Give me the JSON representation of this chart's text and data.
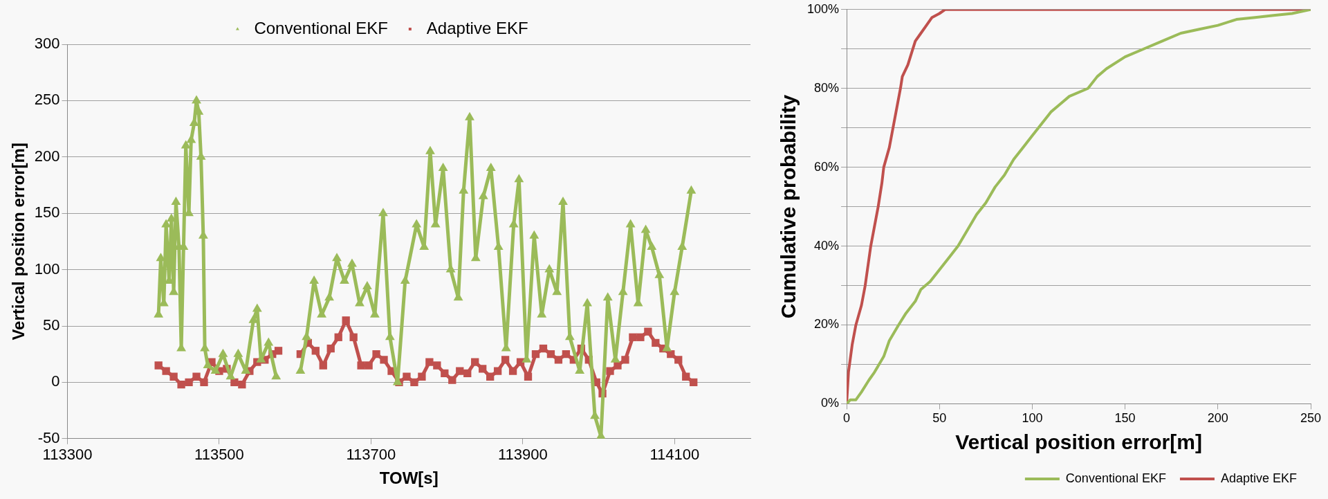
{
  "chart_data": [
    {
      "type": "line",
      "xlabel": "TOW[s]",
      "ylabel": "Vertical position error[m]",
      "xlim": [
        113300,
        114200
      ],
      "xticks": [
        113300,
        113500,
        113700,
        113900,
        114100
      ],
      "ylim": [
        -50,
        300
      ],
      "yticks": [
        -50,
        0,
        50,
        100,
        150,
        200,
        250,
        300
      ],
      "grid": "y",
      "legend": "top",
      "line_style": "solid",
      "series": [
        {
          "name": "Conventional EKF",
          "color": "#9bbb59",
          "marker": "triangle",
          "x": [
            113420,
            113423,
            113427,
            113430,
            113434,
            113437,
            113440,
            113443,
            113447,
            113450,
            113453,
            113456,
            113460,
            113463,
            113467,
            113470,
            113473,
            113476,
            113479,
            113481,
            113485,
            113495,
            113505,
            113515,
            113525,
            113535,
            113545,
            113550,
            113555,
            113565,
            113575,
            113590,
            113607,
            113615,
            113625,
            113635,
            113645,
            113655,
            113665,
            113675,
            113685,
            113695,
            113705,
            113716,
            113725,
            113735,
            113745,
            113760,
            113770,
            113778,
            113785,
            113795,
            113805,
            113815,
            113822,
            113830,
            113838,
            113848,
            113858,
            113868,
            113878,
            113888,
            113895,
            113905,
            113915,
            113925,
            113935,
            113945,
            113953,
            113962,
            113975,
            113985,
            113995,
            114003,
            114012,
            114022,
            114032,
            114042,
            114052,
            114062,
            114070,
            114080,
            114090,
            114100,
            114110,
            114122
          ],
          "values": [
            60,
            110,
            70,
            140,
            90,
            145,
            80,
            160,
            120,
            30,
            120,
            210,
            150,
            215,
            230,
            250,
            240,
            200,
            130,
            30,
            15,
            10,
            25,
            5,
            25,
            10,
            55,
            65,
            20,
            35,
            5,
            null,
            10,
            40,
            90,
            60,
            75,
            110,
            90,
            105,
            70,
            85,
            60,
            150,
            40,
            0,
            90,
            140,
            120,
            205,
            140,
            190,
            100,
            75,
            170,
            235,
            110,
            165,
            190,
            120,
            30,
            140,
            180,
            20,
            130,
            60,
            100,
            80,
            160,
            40,
            10,
            70,
            -30,
            -48,
            75,
            20,
            80,
            140,
            70,
            135,
            120,
            95,
            30,
            80,
            120,
            170
          ]
        },
        {
          "name": "Adaptive EKF",
          "color": "#c0504d",
          "marker": "square",
          "x": [
            113420,
            113430,
            113440,
            113450,
            113460,
            113470,
            113480,
            113490,
            113500,
            113510,
            113520,
            113530,
            113540,
            113550,
            113560,
            113570,
            113578,
            113590,
            113607,
            113617,
            113627,
            113637,
            113647,
            113657,
            113667,
            113677,
            113687,
            113697,
            113707,
            113717,
            113727,
            113737,
            113747,
            113757,
            113767,
            113777,
            113787,
            113797,
            113807,
            113817,
            113827,
            113837,
            113847,
            113857,
            113867,
            113877,
            113887,
            113897,
            113907,
            113917,
            113927,
            113937,
            113947,
            113957,
            113967,
            113977,
            113987,
            113997,
            114005,
            114015,
            114025,
            114035,
            114045,
            114055,
            114065,
            114075,
            114085,
            114095,
            114105,
            114115,
            114125
          ],
          "values": [
            15,
            10,
            5,
            -2,
            0,
            5,
            0,
            18,
            10,
            12,
            0,
            -2,
            10,
            18,
            20,
            25,
            28,
            null,
            25,
            35,
            28,
            15,
            30,
            40,
            55,
            40,
            15,
            15,
            25,
            20,
            10,
            0,
            5,
            0,
            5,
            18,
            15,
            8,
            2,
            10,
            8,
            18,
            12,
            5,
            10,
            20,
            10,
            18,
            5,
            25,
            30,
            25,
            20,
            25,
            20,
            30,
            20,
            0,
            -10,
            10,
            15,
            20,
            40,
            40,
            45,
            35,
            30,
            25,
            20,
            5,
            0
          ]
        }
      ]
    },
    {
      "type": "line",
      "xlabel": "Vertical position error[m]",
      "ylabel": "Cumulative probability",
      "xlim": [
        0,
        250
      ],
      "xticks": [
        0,
        50,
        100,
        150,
        200,
        250
      ],
      "ylim": [
        0,
        100
      ],
      "yticks": [
        {
          "value": 0,
          "label": "0%"
        },
        {
          "value": 10,
          "label": null
        },
        {
          "value": 20,
          "label": "20%"
        },
        {
          "value": 30,
          "label": null
        },
        {
          "value": 40,
          "label": "40%"
        },
        {
          "value": 50,
          "label": null
        },
        {
          "value": 60,
          "label": "60%"
        },
        {
          "value": 70,
          "label": null
        },
        {
          "value": 80,
          "label": "80%"
        },
        {
          "value": 90,
          "label": null
        },
        {
          "value": 100,
          "label": "100%"
        }
      ],
      "grid": "y",
      "legend": "bottom right",
      "marker": "none",
      "line_style": "solid",
      "series": [
        {
          "name": "Conventional EKF",
          "color": "#9bbb59",
          "x": [
            0,
            2,
            5,
            8,
            12,
            15,
            20,
            23,
            28,
            32,
            37,
            40,
            45,
            50,
            55,
            60,
            65,
            70,
            75,
            80,
            85,
            90,
            95,
            100,
            105,
            110,
            115,
            120,
            130,
            135,
            140,
            150,
            160,
            170,
            180,
            190,
            200,
            210,
            220,
            230,
            240,
            250
          ],
          "values": [
            0,
            1,
            1,
            3,
            6,
            8,
            12,
            16,
            20,
            23,
            26,
            29,
            31,
            34,
            37,
            40,
            44,
            48,
            51,
            55,
            58,
            62,
            65,
            68,
            71,
            74,
            76,
            78,
            80,
            83,
            85,
            88,
            90,
            92,
            94,
            95,
            96,
            97.5,
            98,
            98.5,
            99,
            100
          ]
        },
        {
          "name": "Adaptive EKF",
          "color": "#c0504d",
          "x": [
            0,
            1,
            3,
            5,
            8,
            10,
            13,
            15,
            17,
            19,
            20,
            23,
            25,
            27,
            29,
            30,
            33,
            35,
            37,
            40,
            43,
            46,
            50,
            53,
            250
          ],
          "values": [
            0,
            8,
            15,
            20,
            25,
            30,
            40,
            45,
            50,
            56,
            60,
            65,
            70,
            75,
            80,
            83,
            86,
            89,
            92,
            94,
            96,
            98,
            99,
            100,
            100
          ]
        }
      ]
    }
  ]
}
